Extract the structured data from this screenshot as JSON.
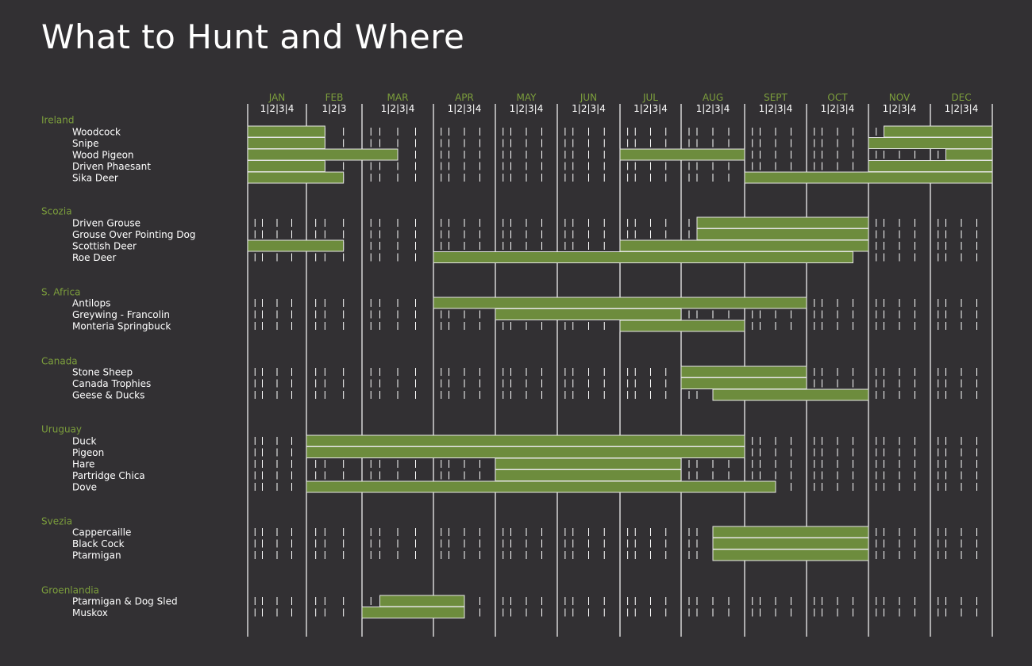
{
  "title": "What to Hunt and Where",
  "colors": {
    "background": "#323033",
    "bar": "#6d8c3d",
    "bar_border": "#e6e6e6",
    "accent_text": "#7c9e3c",
    "text": "#ffffff",
    "line": "#ffffff"
  },
  "chart_data": {
    "type": "gantt",
    "title": "What to Hunt and Where",
    "months": [
      {
        "label": "JAN",
        "weeks": "1|2|3|4"
      },
      {
        "label": "FEB",
        "weeks": "1|2|3"
      },
      {
        "label": "MAR",
        "weeks": "1|2|3|4"
      },
      {
        "label": "APR",
        "weeks": "1|2|3|4"
      },
      {
        "label": "MAY",
        "weeks": "1|2|3|4"
      },
      {
        "label": "JUN",
        "weeks": "1|2|3|4"
      },
      {
        "label": "JUL",
        "weeks": "1|2|3|4"
      },
      {
        "label": "AUG",
        "weeks": "1|2|3|4"
      },
      {
        "label": "SEPT",
        "weeks": "1|2|3|4"
      },
      {
        "label": "OCT",
        "weeks": "1|2|3|4"
      },
      {
        "label": "NOV",
        "weeks": "1|2|3|4"
      },
      {
        "label": "DEC",
        "weeks": "1|2|3|4"
      }
    ],
    "groups": [
      {
        "name": "Ireland",
        "items": [
          {
            "name": "Woodcock",
            "seasons": [
              [
                1,
                1,
                2,
                1
              ],
              [
                11,
                2,
                12,
                4
              ]
            ]
          },
          {
            "name": "Snipe",
            "seasons": [
              [
                1,
                1,
                2,
                1
              ],
              [
                11,
                1,
                12,
                4
              ]
            ]
          },
          {
            "name": "Wood Pigeon",
            "seasons": [
              [
                1,
                1,
                3,
                2
              ],
              [
                7,
                1,
                8,
                4
              ],
              [
                12,
                2,
                12,
                4
              ]
            ]
          },
          {
            "name": "Driven Phaesant",
            "seasons": [
              [
                1,
                1,
                2,
                1
              ],
              [
                11,
                1,
                12,
                4
              ]
            ]
          },
          {
            "name": "Sika Deer",
            "seasons": [
              [
                1,
                1,
                2,
                2
              ],
              [
                9,
                1,
                12,
                4
              ]
            ]
          }
        ]
      },
      {
        "name": "Scozia",
        "items": [
          {
            "name": "Driven Grouse",
            "seasons": [
              [
                8,
                2,
                10,
                4
              ]
            ]
          },
          {
            "name": "Grouse Over Pointing Dog",
            "seasons": [
              [
                8,
                2,
                10,
                4
              ]
            ]
          },
          {
            "name": "Scottish Deer",
            "seasons": [
              [
                1,
                1,
                2,
                2
              ],
              [
                7,
                1,
                10,
                4
              ]
            ]
          },
          {
            "name": "Roe Deer",
            "seasons": [
              [
                4,
                1,
                10,
                3
              ]
            ]
          }
        ]
      },
      {
        "name": "S. Africa",
        "items": [
          {
            "name": "Antilops",
            "seasons": [
              [
                4,
                1,
                9,
                4
              ]
            ]
          },
          {
            "name": "Greywing - Francolin",
            "seasons": [
              [
                5,
                1,
                7,
                4
              ]
            ]
          },
          {
            "name": "Monteria Springbuck",
            "seasons": [
              [
                7,
                1,
                8,
                4
              ]
            ]
          }
        ]
      },
      {
        "name": "Canada",
        "items": [
          {
            "name": "Stone Sheep",
            "seasons": [
              [
                8,
                1,
                9,
                4
              ]
            ]
          },
          {
            "name": "Canada Trophies",
            "seasons": [
              [
                8,
                1,
                9,
                4
              ]
            ]
          },
          {
            "name": "Geese & Ducks",
            "seasons": [
              [
                8,
                3,
                10,
                4
              ]
            ]
          }
        ]
      },
      {
        "name": "Uruguay",
        "items": [
          {
            "name": "Duck",
            "seasons": [
              [
                2,
                1,
                8,
                4
              ]
            ]
          },
          {
            "name": "Pigeon",
            "seasons": [
              [
                2,
                1,
                8,
                4
              ]
            ]
          },
          {
            "name": "Hare",
            "seasons": [
              [
                5,
                1,
                7,
                4
              ]
            ]
          },
          {
            "name": "Partridge Chica",
            "seasons": [
              [
                5,
                1,
                7,
                4
              ]
            ]
          },
          {
            "name": "Dove",
            "seasons": [
              [
                2,
                1,
                9,
                2
              ]
            ]
          }
        ]
      },
      {
        "name": "Svezia",
        "items": [
          {
            "name": "Cappercaille",
            "seasons": [
              [
                8,
                3,
                10,
                4
              ]
            ]
          },
          {
            "name": "Black Cock",
            "seasons": [
              [
                8,
                3,
                10,
                4
              ]
            ]
          },
          {
            "name": "Ptarmigan",
            "seasons": [
              [
                8,
                3,
                10,
                4
              ]
            ]
          }
        ]
      },
      {
        "name": "Groenlandia",
        "items": [
          {
            "name": "Ptarmigan & Dog Sled",
            "seasons": [
              [
                3,
                2,
                4,
                2
              ]
            ]
          },
          {
            "name": "Muskox",
            "seasons": [
              [
                3,
                1,
                4,
                2
              ]
            ]
          }
        ]
      }
    ]
  }
}
